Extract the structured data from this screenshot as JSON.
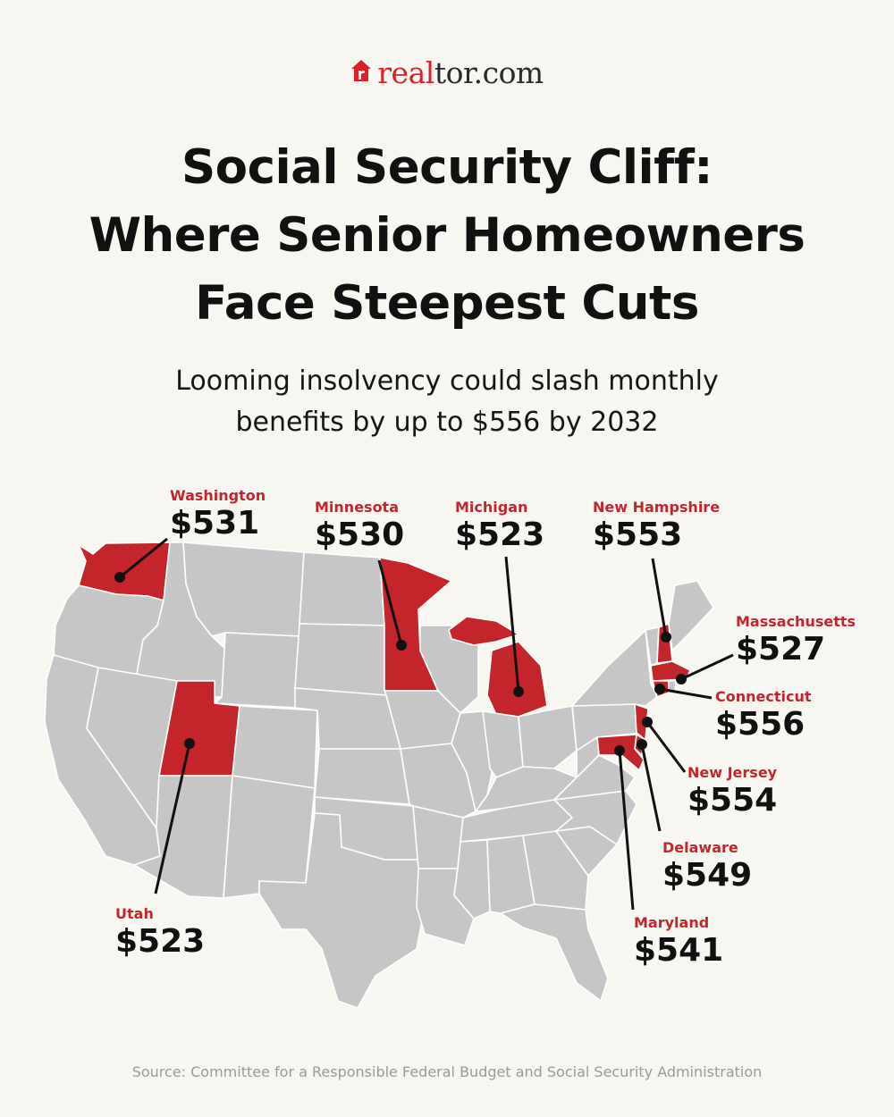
{
  "brand": {
    "logo_real": "real",
    "logo_rest": "tor.com",
    "accent_color": "#d92228"
  },
  "title_lines": [
    "Social Security Cliff:",
    "Where Senior Homeowners",
    "Face Steepest Cuts"
  ],
  "subtitle_lines": [
    "Looming insolvency could slash monthly",
    "benefits by up to $556 by 2032"
  ],
  "colors": {
    "highlight_state": "#c4252b",
    "other_state": "#c6c6c6",
    "border": "#ffffff",
    "leader_line": "#111111",
    "background": "#f8f6f1"
  },
  "callouts": [
    {
      "state": "Washington",
      "amount": "$531"
    },
    {
      "state": "Minnesota",
      "amount": "$530"
    },
    {
      "state": "Michigan",
      "amount": "$523"
    },
    {
      "state": "New Hampshire",
      "amount": "$553"
    },
    {
      "state": "Massachusetts",
      "amount": "$527"
    },
    {
      "state": "Connecticut",
      "amount": "$556"
    },
    {
      "state": "New Jersey",
      "amount": "$554"
    },
    {
      "state": "Delaware",
      "amount": "$549"
    },
    {
      "state": "Maryland",
      "amount": "$541"
    },
    {
      "state": "Utah",
      "amount": "$523"
    }
  ],
  "source": "Source: Committee for a Responsible Federal Budget and Social Security Administration"
}
